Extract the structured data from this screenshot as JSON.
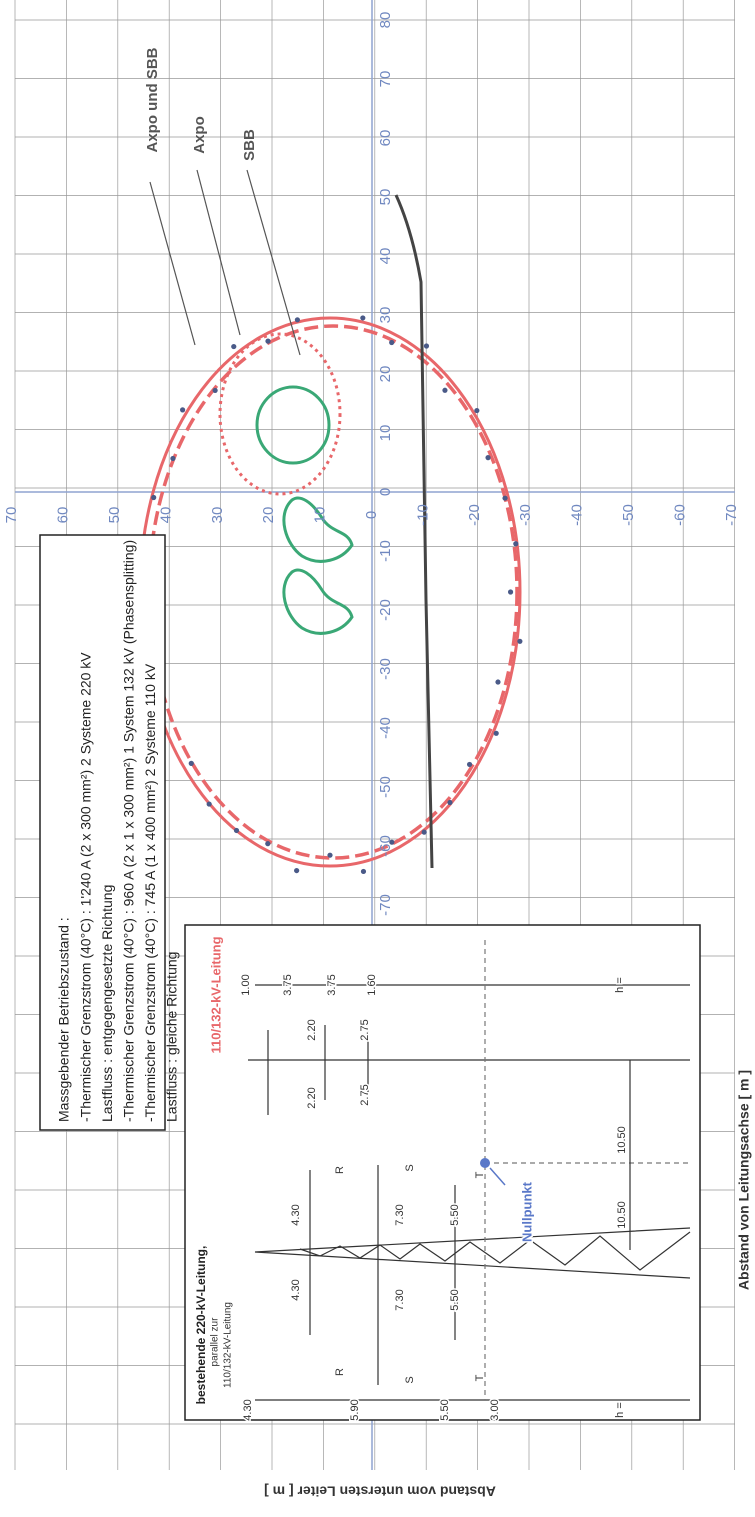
{
  "x_axis_label": "Abstand von Leitungsachse [ m ]",
  "y_axis_label": "Abstand vom untersten Leiter [ m ]",
  "distance_ticks": [
    80,
    70,
    60,
    50,
    40,
    30,
    20,
    10,
    0,
    -10,
    -20,
    -30,
    -40,
    -50,
    -60,
    -70
  ],
  "height_ticks": [
    70,
    60,
    50,
    40,
    30,
    20,
    10,
    0,
    -10,
    -20,
    -30,
    -40,
    -50,
    -60,
    -70
  ],
  "info": {
    "heading": "Massgebender Betriebszustand :",
    "lines": [
      "-Thermischer Grenzstrom (40°C) : 1'240 A  (2 x 300 mm²) 2 Systeme  220 kV",
      "Lastfluss :  entgegengesetzte Richtung",
      "-Thermischer Grenzstrom (40°C) :    960 A  (2 x 1 x 300 mm²) 1 System  132 kV (Phasensplitting)",
      "-Thermischer Grenzstrom (40°C) :    745 A  (1 x 400 mm²) 2 Systeme 110 kV",
      "Lastfluss :  gleiche Richtung"
    ]
  },
  "legend": [
    "Axpo und SBB",
    "Axpo",
    "SBB"
  ],
  "inset": {
    "labels": [
      "bestehende 220-kV-Leitung,",
      "parallel zur",
      "110/132-kV-Leitung",
      "110/132-kV-Leitung",
      "Nullpunkt",
      "4.30",
      "4.30",
      "7.30",
      "7.30",
      "5.50",
      "5.50",
      "10.50",
      "10.50",
      "4.30",
      "5.90",
      "5.50",
      "3.00",
      "h =",
      "R",
      "R",
      "S",
      "S",
      "T",
      "T",
      "1.00",
      "3.75",
      "3.75",
      "1.60",
      "h =",
      "2.20",
      "2.20",
      "2.75",
      "2.75"
    ]
  }
}
